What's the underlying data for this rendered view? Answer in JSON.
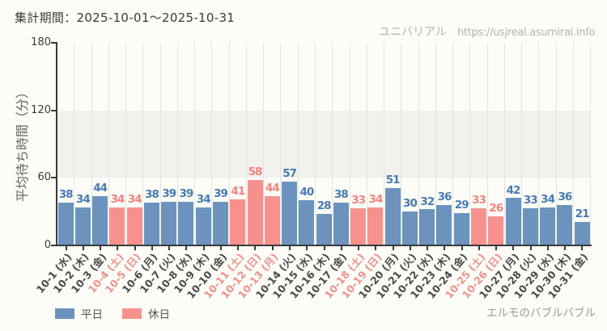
{
  "header": {
    "title": "集計期間：2025-10-01～2025-10-31"
  },
  "credit": {
    "site_name": "ユニバリアル",
    "site_url": "https://usjreal.asumirai.info"
  },
  "footer": {
    "attraction": "エルモのバブルバブル"
  },
  "legend": [
    {
      "label": "平日",
      "type": "weekday"
    },
    {
      "label": "休日",
      "type": "holiday"
    }
  ],
  "colors": {
    "weekday_bar": "#6b93bd",
    "holiday_bar": "#f7918e",
    "weekday_value_label": "#4a7ab2",
    "holiday_value_label": "#f2827f",
    "xlabel_weekday": "#4a4a4a",
    "xlabel_holiday": "#f0908d",
    "band": "#f1f1ee",
    "axis": "#3a3a3a",
    "grid": "#e3e3e0"
  },
  "chart_data": {
    "type": "bar",
    "title": "集計期間：2025-10-01～2025-10-31",
    "xlabel": "",
    "ylabel": "平均待ち時間（分）",
    "ylim": [
      0,
      180
    ],
    "yticks": [
      0,
      60,
      120,
      180
    ],
    "band": [
      60,
      120
    ],
    "grid": "vertical",
    "legend_position": "bottom-left",
    "categories": [
      "10-1 (水)",
      "10-2 (木)",
      "10-3 (金)",
      "10-4 (土)",
      "10-5 (日)",
      "10-6 (月)",
      "10-7 (火)",
      "10-8 (水)",
      "10-9 (木)",
      "10-10 (金)",
      "10-11 (土)",
      "10-12 (日)",
      "10-13 (月)",
      "10-14 (火)",
      "10-15 (水)",
      "10-16 (木)",
      "10-17 (金)",
      "10-18 (土)",
      "10-19 (日)",
      "10-20 (月)",
      "10-21 (火)",
      "10-22 (水)",
      "10-23 (木)",
      "10-24 (金)",
      "10-25 (土)",
      "10-26 (日)",
      "10-27 (月)",
      "10-28 (火)",
      "10-29 (水)",
      "10-30 (木)",
      "10-31 (金)"
    ],
    "values": [
      38,
      34,
      44,
      34,
      34,
      38,
      39,
      39,
      34,
      39,
      41,
      58,
      44,
      57,
      40,
      28,
      38,
      33,
      34,
      51,
      30,
      32,
      36,
      29,
      33,
      26,
      42,
      33,
      34,
      36,
      21
    ],
    "day_types": [
      "weekday",
      "weekday",
      "weekday",
      "holiday",
      "holiday",
      "weekday",
      "weekday",
      "weekday",
      "weekday",
      "weekday",
      "holiday",
      "holiday",
      "holiday",
      "weekday",
      "weekday",
      "weekday",
      "weekday",
      "holiday",
      "holiday",
      "weekday",
      "weekday",
      "weekday",
      "weekday",
      "weekday",
      "holiday",
      "holiday",
      "weekday",
      "weekday",
      "weekday",
      "weekday",
      "weekday"
    ],
    "series_name": "平均待ち時間"
  }
}
